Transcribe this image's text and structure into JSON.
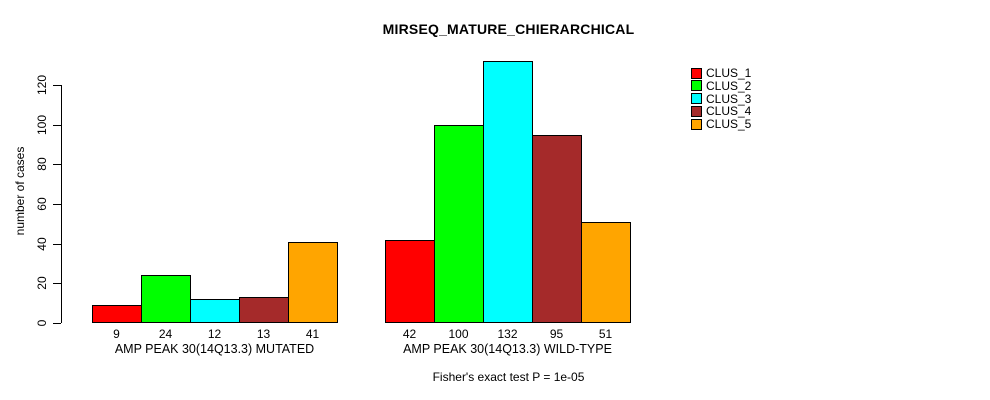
{
  "title": "MIRSEQ_MATURE_CHIERARCHICAL",
  "y_axis": {
    "label": "number of cases",
    "ticks": [
      0,
      20,
      40,
      60,
      80,
      100,
      120
    ]
  },
  "footer": "Fisher's exact test P = 1e-05",
  "colors": {
    "background": "#ffffff",
    "axis": "#000000",
    "bar_border": "#000000"
  },
  "chart_data": {
    "type": "bar",
    "title": "MIRSEQ_MATURE_CHIERARCHICAL",
    "xlabel": "",
    "ylabel": "number of cases",
    "ylim": [
      0,
      132
    ],
    "yticks": [
      0,
      20,
      40,
      60,
      80,
      100,
      120
    ],
    "grid": false,
    "legend_position": "top-right",
    "categories": [
      "AMP PEAK 30(14Q13.3) MUTATED",
      "AMP PEAK 30(14Q13.3) WILD-TYPE"
    ],
    "series": [
      {
        "name": "CLUS_1",
        "color": "#FF0000",
        "values": [
          9,
          42
        ]
      },
      {
        "name": "CLUS_2",
        "color": "#00FF00",
        "values": [
          24,
          100
        ]
      },
      {
        "name": "CLUS_3",
        "color": "#00FFFF",
        "values": [
          12,
          132
        ]
      },
      {
        "name": "CLUS_4",
        "color": "#A52A2A",
        "values": [
          13,
          95
        ]
      },
      {
        "name": "CLUS_5",
        "color": "#FFA500",
        "values": [
          41,
          51
        ]
      }
    ],
    "bar_value_labels": [
      [
        9,
        24,
        12,
        13,
        41
      ],
      [
        42,
        100,
        132,
        95,
        51
      ]
    ],
    "annotation": "Fisher's exact test P = 1e-05"
  }
}
